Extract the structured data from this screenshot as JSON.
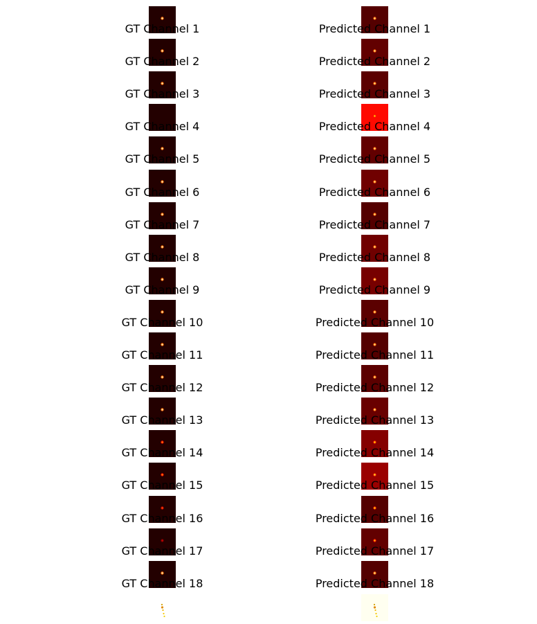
{
  "colors": {
    "background": "#ffffff",
    "label_text": "#000000"
  },
  "chart_data": {
    "type": "heatmap",
    "colormap": "hot",
    "grid": false,
    "axes": "off",
    "columns": [
      {
        "name": "GT",
        "panels": [
          {
            "label": "GT Channel 1",
            "background_level": 0.05,
            "peak_level": 0.95
          },
          {
            "label": "GT Channel 2",
            "background_level": 0.05,
            "peak_level": 0.95
          },
          {
            "label": "GT Channel 3",
            "background_level": 0.05,
            "peak_level": 0.95
          },
          {
            "label": "GT Channel 4",
            "background_level": 0.05,
            "peak_level": 0.0
          },
          {
            "label": "GT Channel 5",
            "background_level": 0.05,
            "peak_level": 0.95
          },
          {
            "label": "GT Channel 6",
            "background_level": 0.05,
            "peak_level": 0.95
          },
          {
            "label": "GT Channel 7",
            "background_level": 0.05,
            "peak_level": 0.95
          },
          {
            "label": "GT Channel 8",
            "background_level": 0.05,
            "peak_level": 0.95
          },
          {
            "label": "GT Channel 9",
            "background_level": 0.05,
            "peak_level": 0.95
          },
          {
            "label": "GT Channel 10",
            "background_level": 0.05,
            "peak_level": 0.95
          },
          {
            "label": "GT Channel 11",
            "background_level": 0.05,
            "peak_level": 0.95
          },
          {
            "label": "GT Channel 12",
            "background_level": 0.05,
            "peak_level": 0.95
          },
          {
            "label": "GT Channel 13",
            "background_level": 0.05,
            "peak_level": 0.95
          },
          {
            "label": "GT Channel 14",
            "background_level": 0.05,
            "peak_level": 0.6
          },
          {
            "label": "GT Channel 15",
            "background_level": 0.05,
            "peak_level": 0.6
          },
          {
            "label": "GT Channel 16",
            "background_level": 0.05,
            "peak_level": 0.5
          },
          {
            "label": "GT Channel 17",
            "background_level": 0.05,
            "peak_level": 0.3
          },
          {
            "label": "GT Channel 18",
            "background_level": 0.05,
            "peak_level": 0.95
          }
        ]
      },
      {
        "name": "Predicted",
        "panels": [
          {
            "label": "Predicted Channel 1",
            "background_level": 0.12,
            "peak_level": 0.9
          },
          {
            "label": "Predicted Channel 2",
            "background_level": 0.14,
            "peak_level": 0.9
          },
          {
            "label": "Predicted Channel 3",
            "background_level": 0.13,
            "peak_level": 0.9
          },
          {
            "label": "Predicted Channel 4",
            "background_level": 0.38,
            "peak_level": 0.75
          },
          {
            "label": "Predicted Channel 5",
            "background_level": 0.14,
            "peak_level": 0.9
          },
          {
            "label": "Predicted Channel 6",
            "background_level": 0.16,
            "peak_level": 0.9
          },
          {
            "label": "Predicted Channel 7",
            "background_level": 0.12,
            "peak_level": 0.9
          },
          {
            "label": "Predicted Channel 8",
            "background_level": 0.16,
            "peak_level": 0.9
          },
          {
            "label": "Predicted Channel 9",
            "background_level": 0.17,
            "peak_level": 0.9
          },
          {
            "label": "Predicted Channel 10",
            "background_level": 0.13,
            "peak_level": 0.9
          },
          {
            "label": "Predicted Channel 11",
            "background_level": 0.12,
            "peak_level": 0.9
          },
          {
            "label": "Predicted Channel 12",
            "background_level": 0.13,
            "peak_level": 0.9
          },
          {
            "label": "Predicted Channel 13",
            "background_level": 0.15,
            "peak_level": 0.9
          },
          {
            "label": "Predicted Channel 14",
            "background_level": 0.19,
            "peak_level": 0.75
          },
          {
            "label": "Predicted Channel 15",
            "background_level": 0.22,
            "peak_level": 0.8
          },
          {
            "label": "Predicted Channel 16",
            "background_level": 0.12,
            "peak_level": 0.75
          },
          {
            "label": "Predicted Channel 17",
            "background_level": 0.14,
            "peak_level": 0.7
          },
          {
            "label": "Predicted Channel 18",
            "background_level": 0.12,
            "peak_level": 0.9
          }
        ]
      }
    ],
    "summary_panels": [
      {
        "column": "GT",
        "background_level": 1.0
      },
      {
        "column": "Predicted",
        "background_level": 0.985
      }
    ]
  }
}
